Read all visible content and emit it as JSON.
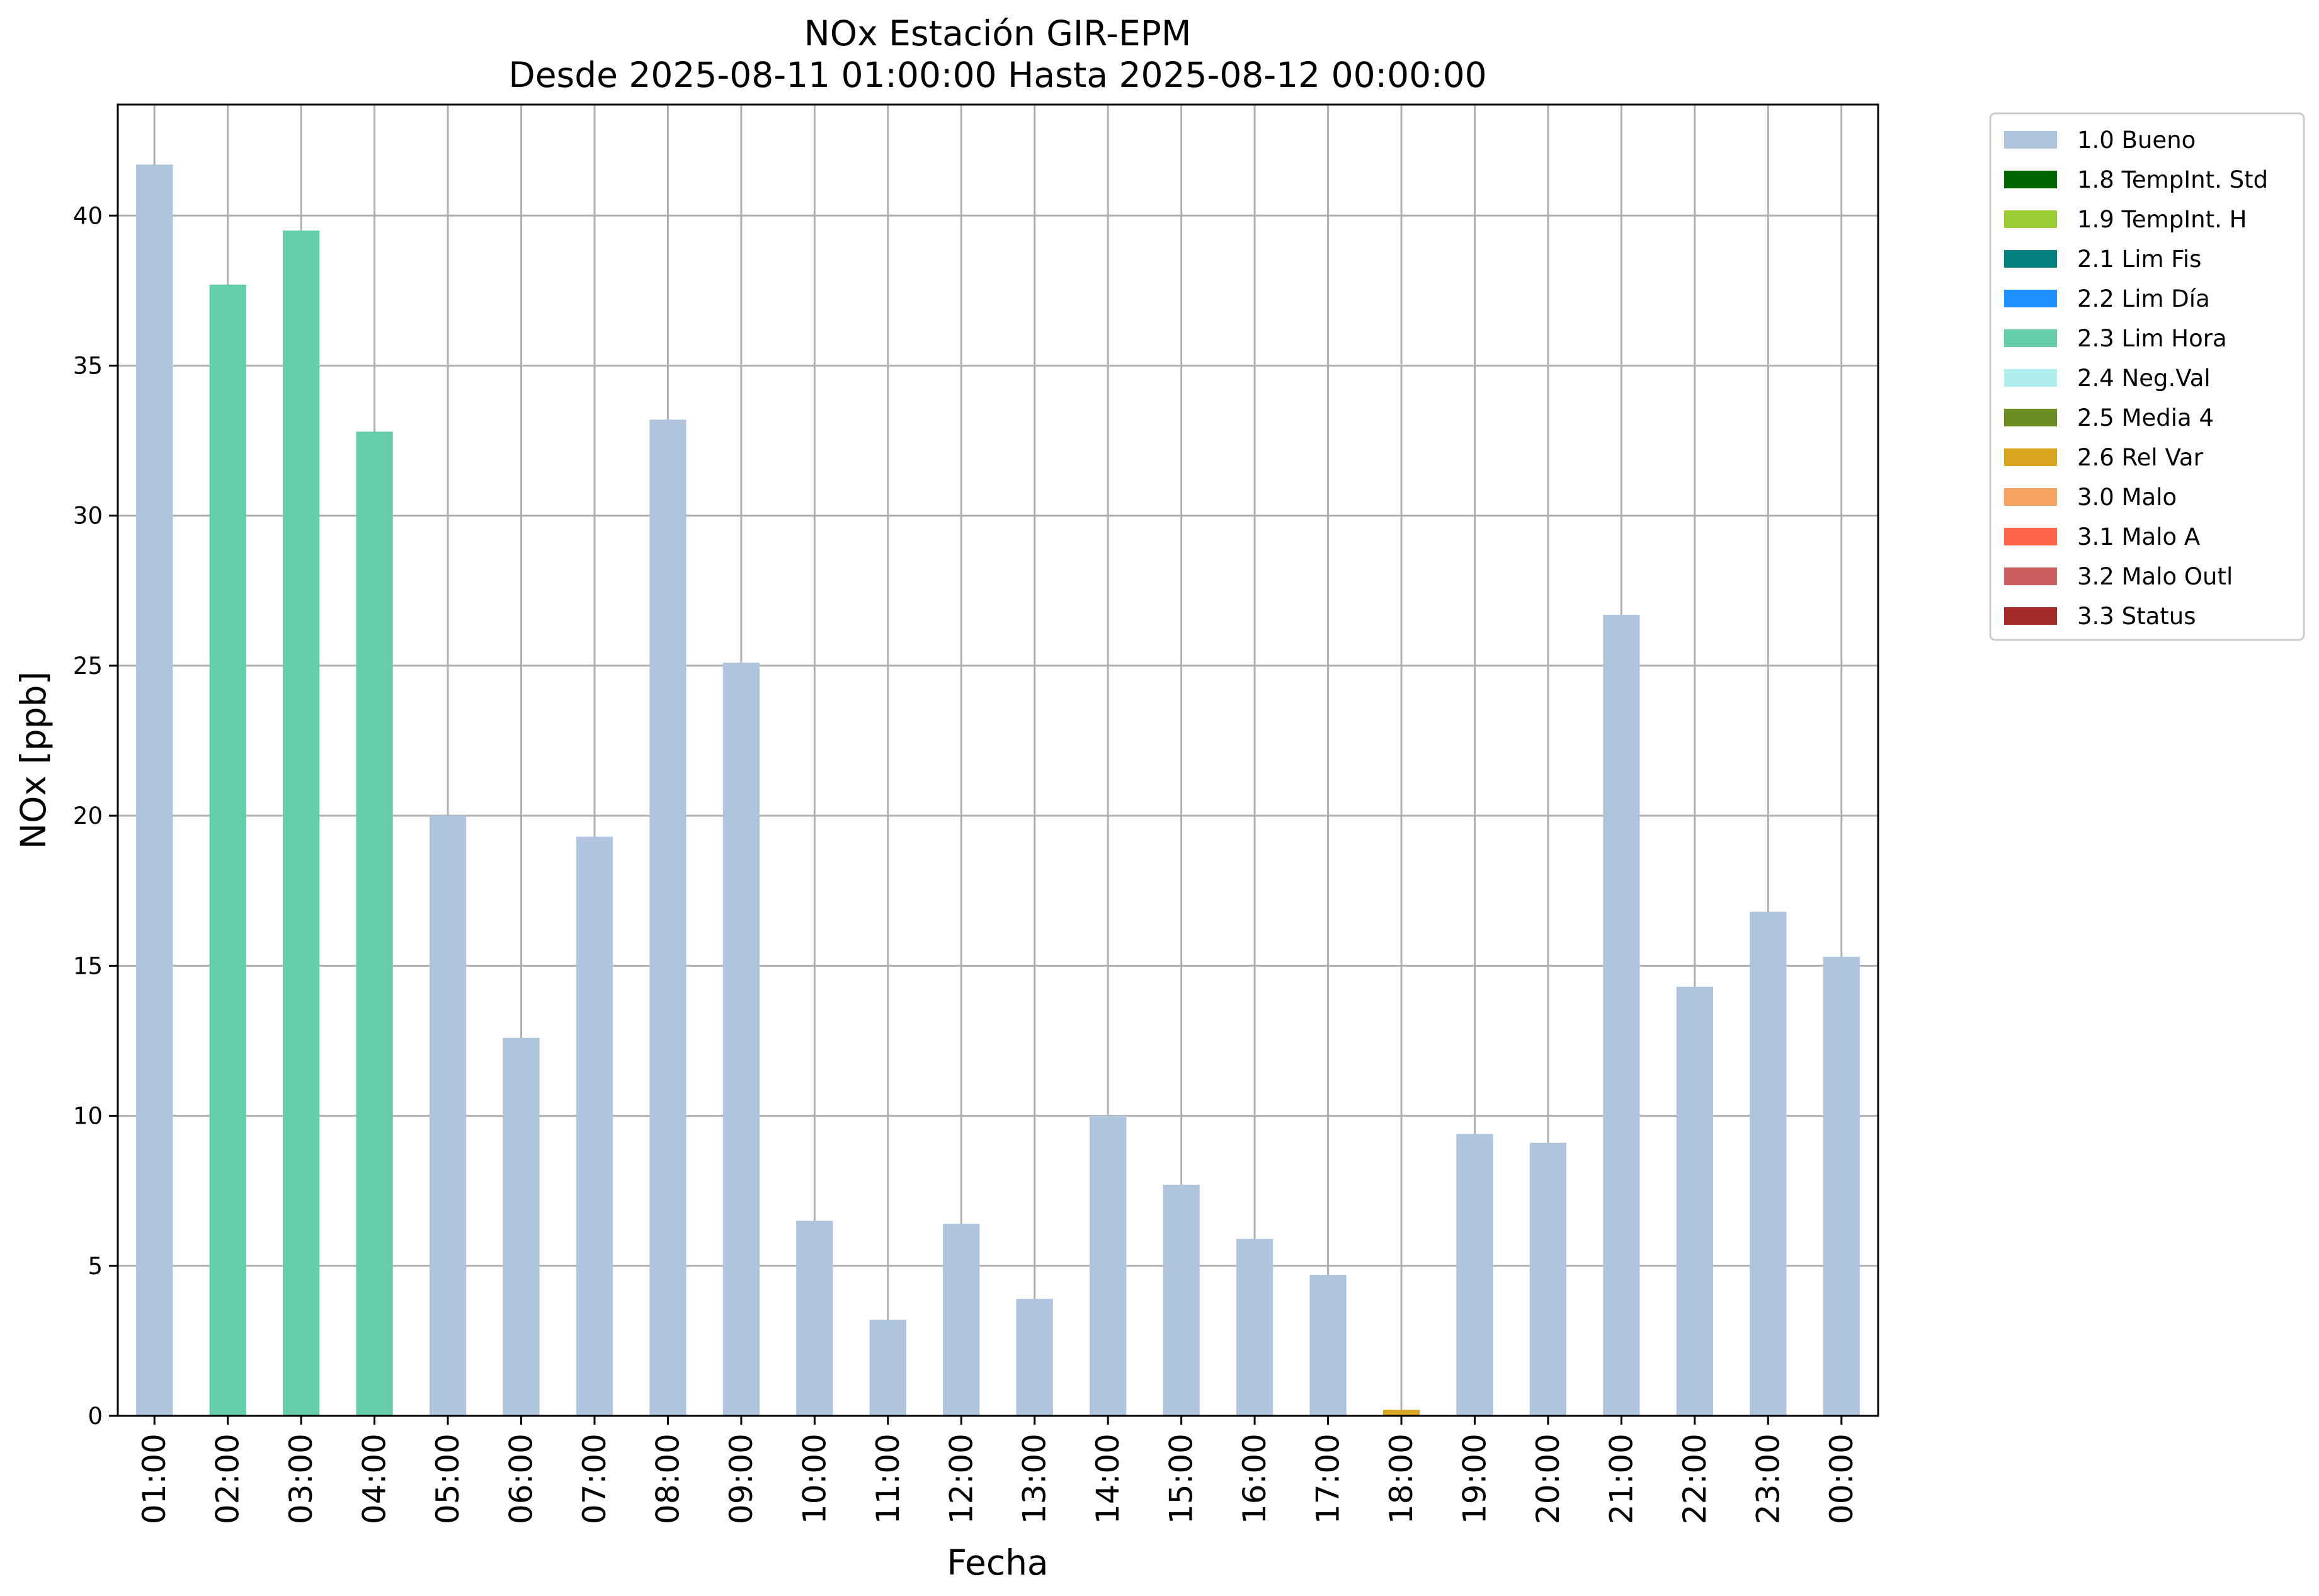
{
  "chart_data": {
    "type": "bar",
    "title": "NOx Estación GIR-EPM",
    "subtitle": "Desde 2025-08-11 01:00:00 Hasta 2025-08-12 00:00:00",
    "xlabel": "Fecha",
    "ylabel": "NOx [ppb]",
    "ylim": [
      0,
      43.7
    ],
    "yticks": [
      "0",
      "5",
      "10",
      "15",
      "20",
      "25",
      "30",
      "35",
      "40"
    ],
    "grid": true,
    "legend_position": "outside-top-right",
    "categories": [
      "01:00",
      "02:00",
      "03:00",
      "04:00",
      "05:00",
      "06:00",
      "07:00",
      "08:00",
      "09:00",
      "10:00",
      "11:00",
      "12:00",
      "13:00",
      "14:00",
      "15:00",
      "16:00",
      "17:00",
      "18:00",
      "19:00",
      "20:00",
      "21:00",
      "22:00",
      "23:00",
      "00:00"
    ],
    "values": [
      41.7,
      37.7,
      39.5,
      32.8,
      20.0,
      12.6,
      19.3,
      33.2,
      25.1,
      6.5,
      3.2,
      6.4,
      3.9,
      10.0,
      7.7,
      5.9,
      4.7,
      0.2,
      9.4,
      9.1,
      26.7,
      14.3,
      16.8,
      15.3
    ],
    "flags": [
      "1.0 Bueno",
      "2.3 Lim Hora",
      "2.3 Lim Hora",
      "2.3 Lim Hora",
      "1.0 Bueno",
      "1.0 Bueno",
      "1.0 Bueno",
      "1.0 Bueno",
      "1.0 Bueno",
      "1.0 Bueno",
      "1.0 Bueno",
      "1.0 Bueno",
      "1.0 Bueno",
      "1.0 Bueno",
      "1.0 Bueno",
      "1.0 Bueno",
      "1.0 Bueno",
      "2.6 Rel Var",
      "1.0 Bueno",
      "1.0 Bueno",
      "1.0 Bueno",
      "1.0 Bueno",
      "1.0 Bueno",
      "1.0 Bueno"
    ],
    "legend": [
      {
        "name": "1.0 Bueno",
        "color": "#b0c4de"
      },
      {
        "name": "1.8 TempInt. Std",
        "color": "#006400"
      },
      {
        "name": "1.9 TempInt. H",
        "color": "#9acd32"
      },
      {
        "name": "2.1 Lim Fis",
        "color": "#008080"
      },
      {
        "name": "2.2 Lim Día",
        "color": "#1e90ff"
      },
      {
        "name": "2.3 Lim Hora",
        "color": "#66cdaa"
      },
      {
        "name": "2.4 Neg.Val",
        "color": "#afeeee"
      },
      {
        "name": "2.5 Media 4",
        "color": "#6b8e23"
      },
      {
        "name": "2.6 Rel Var",
        "color": "#daa520"
      },
      {
        "name": "3.0 Malo",
        "color": "#f4a460"
      },
      {
        "name": "3.1 Malo A",
        "color": "#ff6347"
      },
      {
        "name": "3.2 Malo Outl",
        "color": "#cd5c5c"
      },
      {
        "name": "3.3 Status",
        "color": "#a52a2a"
      }
    ]
  }
}
